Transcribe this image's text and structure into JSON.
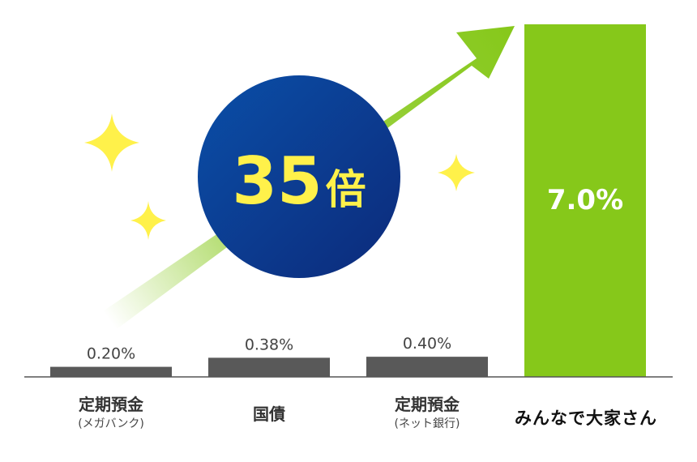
{
  "chart_data": {
    "type": "bar",
    "categories": [
      {
        "main": "定期預金",
        "sub": "(メガバンク)"
      },
      {
        "main": "国債",
        "sub": ""
      },
      {
        "main": "定期預金",
        "sub": "(ネット銀行)"
      },
      {
        "main": "みんなで大家さん",
        "sub": ""
      }
    ],
    "values": [
      0.2,
      0.38,
      0.4,
      7.0
    ],
    "value_labels": [
      "0.20%",
      "0.38%",
      "0.40%",
      "7.0%"
    ],
    "ylim": [
      0,
      7.0
    ],
    "grid": false,
    "colors": {
      "bar_default": "#595959",
      "bar_highlight": "#86c81a",
      "baseline": "#555555",
      "arrow": "#86c81a",
      "circle_start": "#0a4fa8",
      "circle_end": "#0d2a7a",
      "badge_text": "#fff14a",
      "sparkle": "#fff14a",
      "highlight_label": "#ffffff"
    },
    "badge": {
      "number": "35",
      "unit": "倍"
    }
  }
}
